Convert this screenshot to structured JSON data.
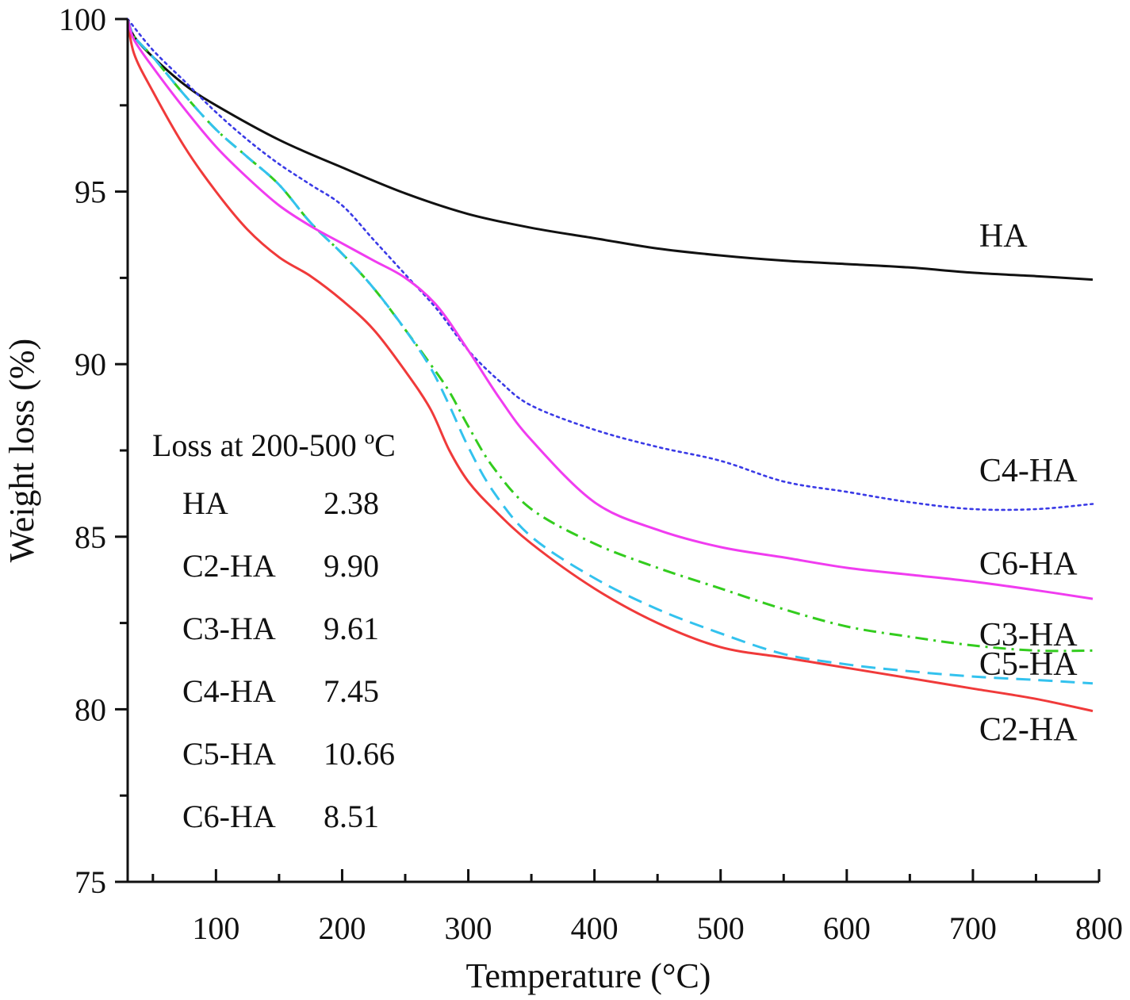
{
  "chart_data": {
    "type": "line",
    "title": "",
    "xlabel": "Temperature (°C)",
    "ylabel": "Weight loss (%)",
    "xlim": [
      30,
      800
    ],
    "ylim": [
      75,
      100
    ],
    "xticks": [
      100,
      200,
      300,
      400,
      500,
      600,
      700,
      800
    ],
    "yticks": [
      75,
      80,
      85,
      90,
      95,
      100
    ],
    "x_minor_step": 50,
    "y_minor_step": 2.5,
    "series": [
      {
        "name": "HA",
        "color": "#111111",
        "style": "solid",
        "x": [
          30,
          35,
          50,
          75,
          100,
          150,
          200,
          250,
          300,
          350,
          400,
          450,
          500,
          550,
          600,
          650,
          700,
          750,
          795
        ],
        "y": [
          100,
          99.5,
          98.9,
          98.1,
          97.5,
          96.5,
          95.7,
          94.95,
          94.35,
          93.95,
          93.65,
          93.35,
          93.15,
          93.0,
          92.9,
          92.8,
          92.65,
          92.55,
          92.45
        ]
      },
      {
        "name": "C2-HA",
        "color": "#f03a3a",
        "style": "solid",
        "x": [
          30,
          35,
          50,
          75,
          100,
          125,
          150,
          175,
          200,
          225,
          250,
          270,
          285,
          300,
          320,
          350,
          400,
          450,
          500,
          550,
          600,
          650,
          700,
          750,
          795
        ],
        "y": [
          100,
          99.0,
          97.9,
          96.3,
          95.0,
          93.9,
          93.1,
          92.55,
          91.85,
          91.0,
          89.8,
          88.7,
          87.5,
          86.6,
          85.8,
          84.8,
          83.5,
          82.5,
          81.8,
          81.5,
          81.2,
          80.9,
          80.6,
          80.3,
          79.95
        ]
      },
      {
        "name": "C3-HA",
        "color": "#33cc1e",
        "style": "dashdot",
        "x": [
          30,
          35,
          50,
          75,
          100,
          125,
          150,
          175,
          200,
          225,
          250,
          270,
          285,
          300,
          320,
          350,
          400,
          450,
          500,
          550,
          600,
          650,
          700,
          750,
          795
        ],
        "y": [
          100,
          99.5,
          98.9,
          97.8,
          96.8,
          96.0,
          95.2,
          94.1,
          93.2,
          92.2,
          91.0,
          90.0,
          89.2,
          88.2,
          87.0,
          85.8,
          84.8,
          84.1,
          83.5,
          82.9,
          82.4,
          82.1,
          81.85,
          81.7,
          81.7
        ]
      },
      {
        "name": "C4-HA",
        "color": "#3a3ae6",
        "style": "dotted",
        "x": [
          30,
          50,
          75,
          100,
          125,
          150,
          175,
          200,
          225,
          250,
          275,
          300,
          325,
          350,
          400,
          450,
          500,
          550,
          600,
          650,
          700,
          750,
          795
        ],
        "y": [
          100,
          99.1,
          98.2,
          97.3,
          96.5,
          95.8,
          95.2,
          94.6,
          93.6,
          92.6,
          91.6,
          90.4,
          89.5,
          88.8,
          88.1,
          87.6,
          87.2,
          86.6,
          86.3,
          86.0,
          85.8,
          85.8,
          85.95
        ]
      },
      {
        "name": "C5-HA",
        "color": "#33c2ee",
        "style": "dashed",
        "x": [
          30,
          35,
          50,
          75,
          100,
          125,
          150,
          175,
          200,
          225,
          250,
          270,
          285,
          300,
          320,
          350,
          400,
          450,
          500,
          550,
          600,
          650,
          700,
          750,
          795
        ],
        "y": [
          100,
          99.5,
          98.9,
          97.8,
          96.8,
          96.0,
          95.2,
          94.1,
          93.2,
          92.2,
          91.0,
          89.9,
          88.8,
          87.6,
          86.3,
          85.0,
          83.8,
          82.9,
          82.2,
          81.6,
          81.3,
          81.1,
          80.95,
          80.85,
          80.75
        ]
      },
      {
        "name": "C6-HA",
        "color": "#f03cf0",
        "style": "solid",
        "x": [
          30,
          35,
          50,
          75,
          100,
          125,
          150,
          175,
          200,
          225,
          250,
          275,
          300,
          325,
          350,
          400,
          450,
          500,
          550,
          600,
          650,
          700,
          750,
          795
        ],
        "y": [
          100,
          99.4,
          98.6,
          97.4,
          96.3,
          95.4,
          94.6,
          94.0,
          93.5,
          93.0,
          92.5,
          91.7,
          90.4,
          89.0,
          87.8,
          86.0,
          85.2,
          84.7,
          84.4,
          84.1,
          83.9,
          83.7,
          83.45,
          83.2
        ]
      }
    ],
    "annotations": {
      "table_title": "Loss at 200-500 ºC",
      "table_rows": [
        {
          "name": "HA",
          "value": "2.38"
        },
        {
          "name": "C2-HA",
          "value": "9.90"
        },
        {
          "name": "C3-HA",
          "value": "9.61"
        },
        {
          "name": "C4-HA",
          "value": "7.45"
        },
        {
          "name": "C5-HA",
          "value": "10.66"
        },
        {
          "name": "C6-HA",
          "value": "8.51"
        }
      ],
      "series_labels": [
        {
          "text": "HA",
          "x": 705,
          "y": 93.4
        },
        {
          "text": "C4-HA",
          "x": 705,
          "y": 86.6
        },
        {
          "text": "C6-HA",
          "x": 705,
          "y": 83.9
        },
        {
          "text": "C3-HA",
          "x": 705,
          "y": 81.85
        },
        {
          "text": "C5-HA",
          "x": 705,
          "y": 81.0
        },
        {
          "text": "C2-HA",
          "x": 705,
          "y": 79.1
        }
      ]
    }
  }
}
